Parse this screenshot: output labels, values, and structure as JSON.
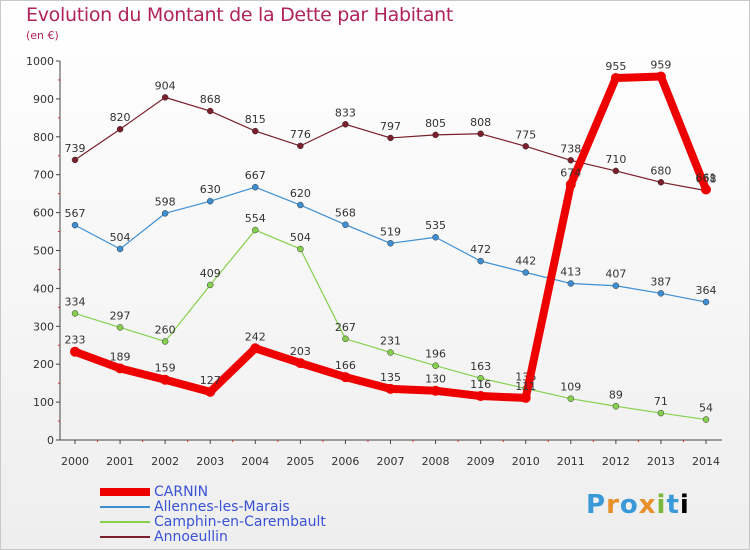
{
  "chart_data": {
    "type": "line",
    "title": "Evolution du Montant de la Dette par Habitant",
    "subtitle": "(en €)",
    "x": [
      "2000",
      "2001",
      "2002",
      "2003",
      "2004",
      "2005",
      "2006",
      "2007",
      "2008",
      "2009",
      "2010",
      "2011",
      "2012",
      "2013",
      "2014"
    ],
    "ylim": [
      0,
      1000
    ],
    "yticks": [
      0,
      100,
      200,
      300,
      400,
      500,
      600,
      700,
      800,
      900,
      1000
    ],
    "grid": false,
    "legend_position": "bottom-left",
    "series": [
      {
        "name": "Annoeullin",
        "color": "#7a1f2b",
        "values": [
          739,
          820,
          904,
          868,
          815,
          776,
          833,
          797,
          805,
          808,
          775,
          738,
          710,
          680,
          658
        ]
      },
      {
        "name": "Allennes-les-Marais",
        "color": "#3e8fd2",
        "values": [
          567,
          504,
          598,
          630,
          667,
          620,
          568,
          519,
          535,
          472,
          442,
          413,
          407,
          387,
          364
        ]
      },
      {
        "name": "Camphin-en-Carembault",
        "color": "#86d04e",
        "values": [
          334,
          297,
          260,
          409,
          554,
          504,
          267,
          231,
          196,
          163,
          136,
          109,
          89,
          71,
          54
        ]
      },
      {
        "name": "CARNIN",
        "color": "#ee0000",
        "values": [
          233,
          189,
          159,
          127,
          242,
          203,
          166,
          135,
          130,
          116,
          111,
          674,
          955,
          959,
          661
        ]
      }
    ],
    "legend": [
      "CARNIN",
      "Allennes-les-Marais",
      "Camphin-en-Carembault",
      "Annoeullin"
    ]
  },
  "logo_text": "Proxiti"
}
